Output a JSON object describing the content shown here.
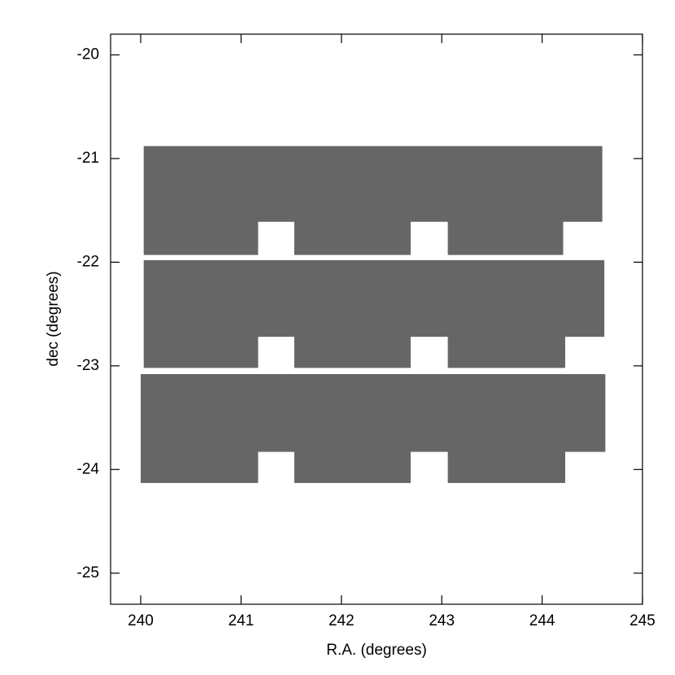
{
  "chart_data": {
    "type": "polygon",
    "xlabel": "R.A. (degrees)",
    "ylabel": "dec (degrees)",
    "xlim": [
      239.7,
      245
    ],
    "ylim": [
      -25.3,
      -19.8
    ],
    "xticks": [
      240,
      241,
      242,
      243,
      244,
      245
    ],
    "yticks": [
      -25,
      -24,
      -23,
      -22,
      -21,
      -20
    ],
    "series": [
      {
        "color": "#666666",
        "x": [
          240.03,
          244.6,
          244.6,
          244.21,
          244.21,
          243.06,
          243.06,
          242.69,
          242.69,
          241.53,
          241.53,
          241.17,
          241.17,
          240.03
        ],
        "y": [
          -20.88,
          -20.88,
          -21.61,
          -21.61,
          -21.93,
          -21.93,
          -21.61,
          -21.61,
          -21.93,
          -21.93,
          -21.61,
          -21.61,
          -21.93,
          -21.93
        ]
      },
      {
        "color": "#666666",
        "x": [
          240.03,
          244.62,
          244.62,
          244.23,
          244.23,
          243.06,
          243.06,
          242.69,
          242.69,
          241.53,
          241.53,
          241.17,
          241.17,
          240.03
        ],
        "y": [
          -21.98,
          -21.98,
          -22.72,
          -22.72,
          -23.02,
          -23.02,
          -22.72,
          -22.72,
          -23.02,
          -23.02,
          -22.72,
          -22.72,
          -23.02,
          -23.02
        ]
      },
      {
        "color": "#666666",
        "x": [
          240.0,
          244.63,
          244.63,
          244.23,
          244.23,
          243.06,
          243.06,
          242.69,
          242.69,
          241.53,
          241.53,
          241.17,
          241.17,
          240.0
        ],
        "y": [
          -23.08,
          -23.08,
          -23.83,
          -23.83,
          -24.13,
          -24.13,
          -23.83,
          -23.83,
          -24.13,
          -24.13,
          -23.83,
          -23.83,
          -24.13,
          -24.13
        ]
      }
    ]
  }
}
